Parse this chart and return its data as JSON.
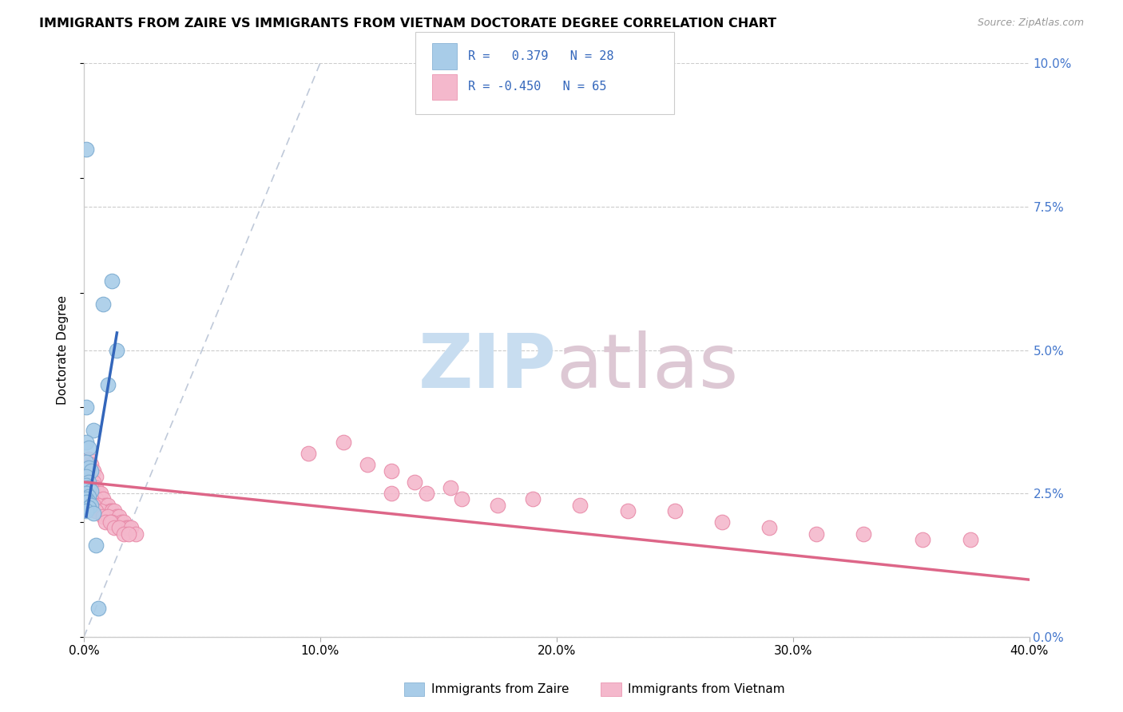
{
  "title": "IMMIGRANTS FROM ZAIRE VS IMMIGRANTS FROM VIETNAM DOCTORATE DEGREE CORRELATION CHART",
  "source": "Source: ZipAtlas.com",
  "ylabel": "Doctorate Degree",
  "right_ytick_labels": [
    "0.0%",
    "2.5%",
    "5.0%",
    "7.5%",
    "10.0%"
  ],
  "right_ytick_values": [
    0.0,
    0.025,
    0.05,
    0.075,
    0.1
  ],
  "xlim": [
    0.0,
    0.4
  ],
  "ylim": [
    0.0,
    0.1
  ],
  "xtick_labels": [
    "0.0%",
    "10.0%",
    "20.0%",
    "30.0%",
    "40.0%"
  ],
  "xtick_values": [
    0.0,
    0.1,
    0.2,
    0.3,
    0.4
  ],
  "zaire_dots": [
    [
      0.001,
      0.085
    ],
    [
      0.012,
      0.062
    ],
    [
      0.008,
      0.058
    ],
    [
      0.014,
      0.05
    ],
    [
      0.01,
      0.044
    ],
    [
      0.001,
      0.04
    ],
    [
      0.004,
      0.036
    ],
    [
      0.001,
      0.034
    ],
    [
      0.002,
      0.033
    ],
    [
      0.001,
      0.0305
    ],
    [
      0.002,
      0.0295
    ],
    [
      0.003,
      0.029
    ],
    [
      0.001,
      0.028
    ],
    [
      0.002,
      0.027
    ],
    [
      0.001,
      0.0265
    ],
    [
      0.002,
      0.026
    ],
    [
      0.003,
      0.0255
    ],
    [
      0.001,
      0.025
    ],
    [
      0.002,
      0.0245
    ],
    [
      0.001,
      0.024
    ],
    [
      0.002,
      0.0235
    ],
    [
      0.001,
      0.0235
    ],
    [
      0.003,
      0.023
    ],
    [
      0.002,
      0.0225
    ],
    [
      0.001,
      0.022
    ],
    [
      0.004,
      0.0215
    ],
    [
      0.005,
      0.016
    ],
    [
      0.006,
      0.005
    ]
  ],
  "vietnam_dots": [
    [
      0.002,
      0.031
    ],
    [
      0.003,
      0.03
    ],
    [
      0.001,
      0.029
    ],
    [
      0.004,
      0.029
    ],
    [
      0.002,
      0.028
    ],
    [
      0.005,
      0.028
    ],
    [
      0.003,
      0.027
    ],
    [
      0.001,
      0.027
    ],
    [
      0.004,
      0.027
    ],
    [
      0.002,
      0.026
    ],
    [
      0.005,
      0.026
    ],
    [
      0.003,
      0.026
    ],
    [
      0.006,
      0.025
    ],
    [
      0.001,
      0.025
    ],
    [
      0.004,
      0.025
    ],
    [
      0.007,
      0.025
    ],
    [
      0.002,
      0.024
    ],
    [
      0.005,
      0.024
    ],
    [
      0.008,
      0.024
    ],
    [
      0.003,
      0.024
    ],
    [
      0.009,
      0.023
    ],
    [
      0.006,
      0.023
    ],
    [
      0.01,
      0.023
    ],
    [
      0.004,
      0.023
    ],
    [
      0.011,
      0.022
    ],
    [
      0.007,
      0.022
    ],
    [
      0.012,
      0.022
    ],
    [
      0.005,
      0.022
    ],
    [
      0.013,
      0.022
    ],
    [
      0.008,
      0.021
    ],
    [
      0.014,
      0.021
    ],
    [
      0.01,
      0.021
    ],
    [
      0.015,
      0.021
    ],
    [
      0.009,
      0.02
    ],
    [
      0.016,
      0.02
    ],
    [
      0.012,
      0.02
    ],
    [
      0.017,
      0.02
    ],
    [
      0.011,
      0.02
    ],
    [
      0.018,
      0.019
    ],
    [
      0.013,
      0.019
    ],
    [
      0.019,
      0.019
    ],
    [
      0.015,
      0.019
    ],
    [
      0.02,
      0.019
    ],
    [
      0.017,
      0.018
    ],
    [
      0.022,
      0.018
    ],
    [
      0.019,
      0.018
    ],
    [
      0.11,
      0.034
    ],
    [
      0.095,
      0.032
    ],
    [
      0.12,
      0.03
    ],
    [
      0.13,
      0.029
    ],
    [
      0.14,
      0.027
    ],
    [
      0.155,
      0.026
    ],
    [
      0.13,
      0.025
    ],
    [
      0.145,
      0.025
    ],
    [
      0.16,
      0.024
    ],
    [
      0.19,
      0.024
    ],
    [
      0.175,
      0.023
    ],
    [
      0.21,
      0.023
    ],
    [
      0.23,
      0.022
    ],
    [
      0.25,
      0.022
    ],
    [
      0.27,
      0.02
    ],
    [
      0.29,
      0.019
    ],
    [
      0.31,
      0.018
    ],
    [
      0.33,
      0.018
    ],
    [
      0.355,
      0.017
    ],
    [
      0.375,
      0.017
    ]
  ],
  "zaire_trend_x": [
    0.001,
    0.014
  ],
  "zaire_trend_y": [
    0.021,
    0.053
  ],
  "vietnam_trend_x": [
    0.0,
    0.4
  ],
  "vietnam_trend_y": [
    0.027,
    0.01
  ],
  "diag_line_x": [
    0.0,
    0.1
  ],
  "diag_line_y": [
    0.0,
    0.1
  ],
  "background_color": "#ffffff",
  "grid_color": "#cccccc",
  "zaire_dot_color": "#a8cce8",
  "zaire_dot_edge": "#7aaad0",
  "vietnam_dot_color": "#f4b8cc",
  "vietnam_dot_edge": "#e88aa8",
  "zaire_trend_color": "#3366bb",
  "vietnam_trend_color": "#dd6688",
  "diag_line_color": "#b0bcd0",
  "watermark_zip_color": "#c8ddf0",
  "watermark_atlas_color": "#ddc8d4",
  "legend_zaire_color": "#a8cce8",
  "legend_zaire_edge": "#7aaad0",
  "legend_vietnam_color": "#f4b8cc",
  "legend_vietnam_edge": "#e88aa8",
  "legend_text_color": "#3366bb",
  "source_color": "#999999",
  "bottom_legend_labels": [
    "Immigrants from Zaire",
    "Immigrants from Vietnam"
  ]
}
